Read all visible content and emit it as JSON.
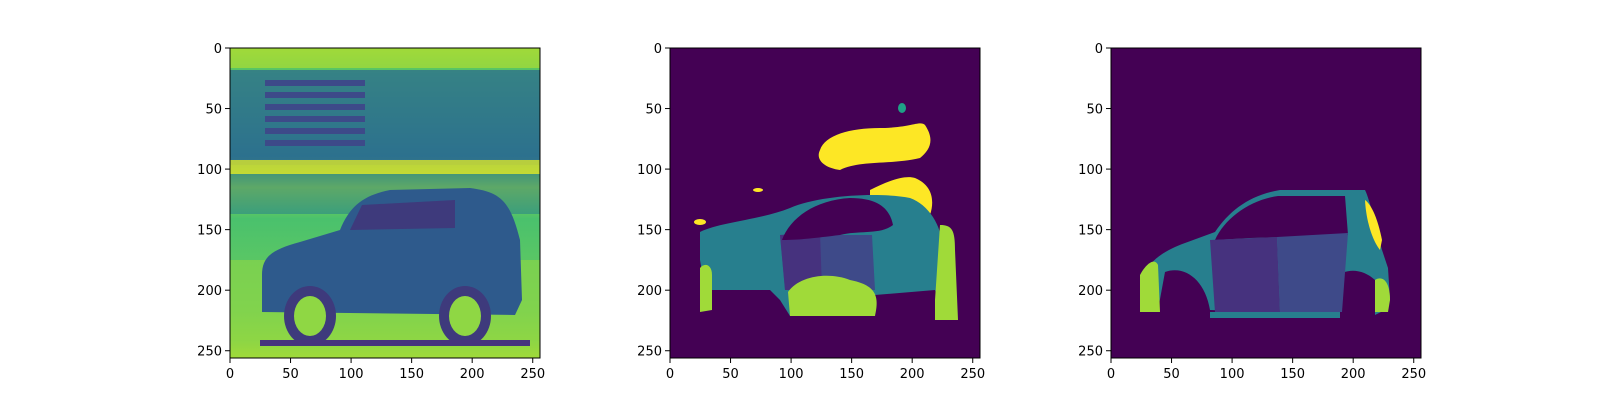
{
  "colors": {
    "viridis_0": "#440154",
    "viridis_1": "#46327e",
    "viridis_2": "#365c8d",
    "viridis_3": "#277f8e",
    "viridis_4": "#1fa187",
    "viridis_5": "#4ac16d",
    "viridis_6": "#a0da39",
    "viridis_7": "#fde725"
  },
  "chart_data": [
    {
      "type": "heatmap",
      "content": "grayscale photo of an SUV rendered with viridis colormap",
      "xlim": [
        0,
        256
      ],
      "ylim": [
        256,
        0
      ],
      "xticks": [
        0,
        50,
        100,
        150,
        200,
        250
      ],
      "yticks": [
        0,
        50,
        100,
        150,
        200,
        250
      ]
    },
    {
      "type": "heatmap",
      "content": "predicted segmentation mask with viridis colormap",
      "xlim": [
        0,
        256
      ],
      "ylim": [
        256,
        0
      ],
      "xticks": [
        0,
        50,
        100,
        150,
        200,
        250
      ],
      "yticks": [
        0,
        50,
        100,
        150,
        200,
        250
      ]
    },
    {
      "type": "heatmap",
      "content": "ground-truth segmentation mask with viridis colormap",
      "xlim": [
        0,
        256
      ],
      "ylim": [
        256,
        0
      ],
      "xticks": [
        0,
        50,
        100,
        150,
        200,
        250
      ],
      "yticks": [
        0,
        50,
        100,
        150,
        200,
        250
      ]
    }
  ]
}
